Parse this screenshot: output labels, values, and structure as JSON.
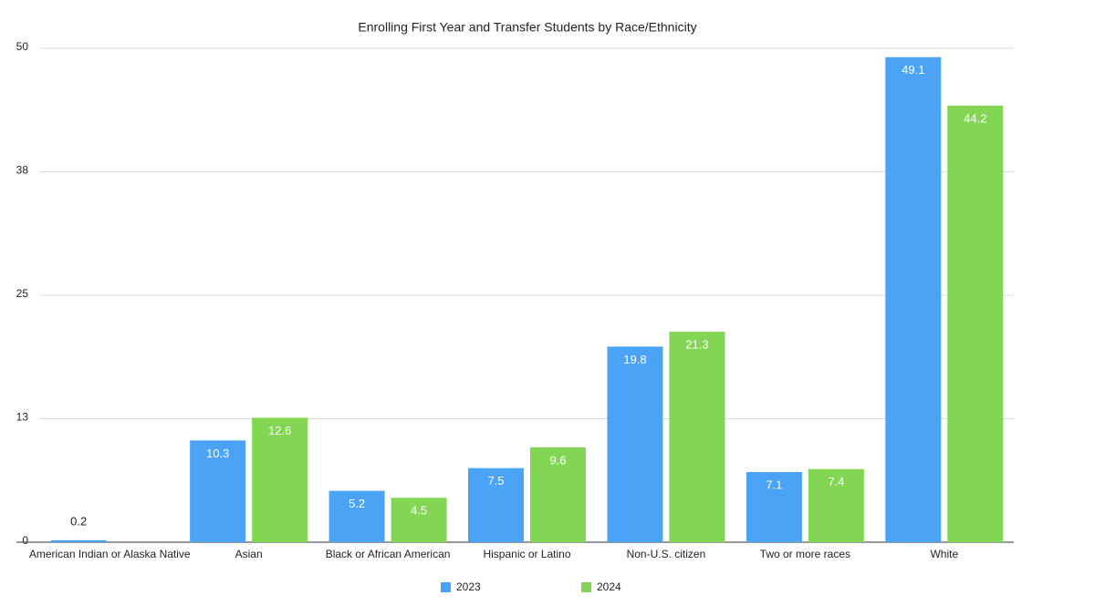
{
  "chart_data": {
    "type": "bar",
    "title": "Enrolling First Year and Transfer Students by Race/Ethnicity",
    "categories": [
      "American Indian or Alaska Native",
      "Asian",
      "Black or African American",
      "Hispanic or Latino",
      "Non-U.S. citizen",
      "Two or more races",
      "White"
    ],
    "series": [
      {
        "name": "2023",
        "color": "#4aa3f5",
        "values": [
          0.2,
          10.3,
          5.2,
          7.5,
          19.8,
          7.1,
          49.1
        ]
      },
      {
        "name": "2024",
        "color": "#83d654",
        "values": [
          null,
          12.6,
          4.5,
          9.6,
          21.3,
          7.4,
          44.2
        ]
      }
    ],
    "ylim": [
      0,
      50
    ],
    "yticks": [
      0,
      {
        "value": 12.5,
        "label": "13"
      },
      25,
      {
        "value": 37.5,
        "label": "38"
      },
      50
    ],
    "grid": true,
    "legend": "bottom"
  }
}
